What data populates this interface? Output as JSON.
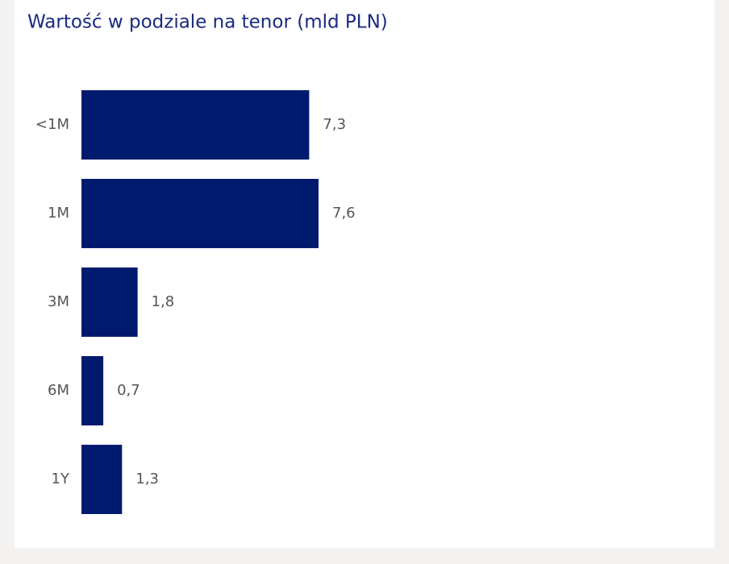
{
  "chart_data": {
    "type": "bar",
    "orientation": "horizontal",
    "title": "Wartość w podziale na tenor (mld PLN)",
    "categories": [
      "<1M",
      "1M",
      "3M",
      "6M",
      "1Y"
    ],
    "values": [
      7.3,
      7.6,
      1.8,
      0.7,
      1.3
    ],
    "value_labels": [
      "7,3",
      "7,6",
      "1,8",
      "0,7",
      "1,3"
    ],
    "color": "#001a6e"
  }
}
